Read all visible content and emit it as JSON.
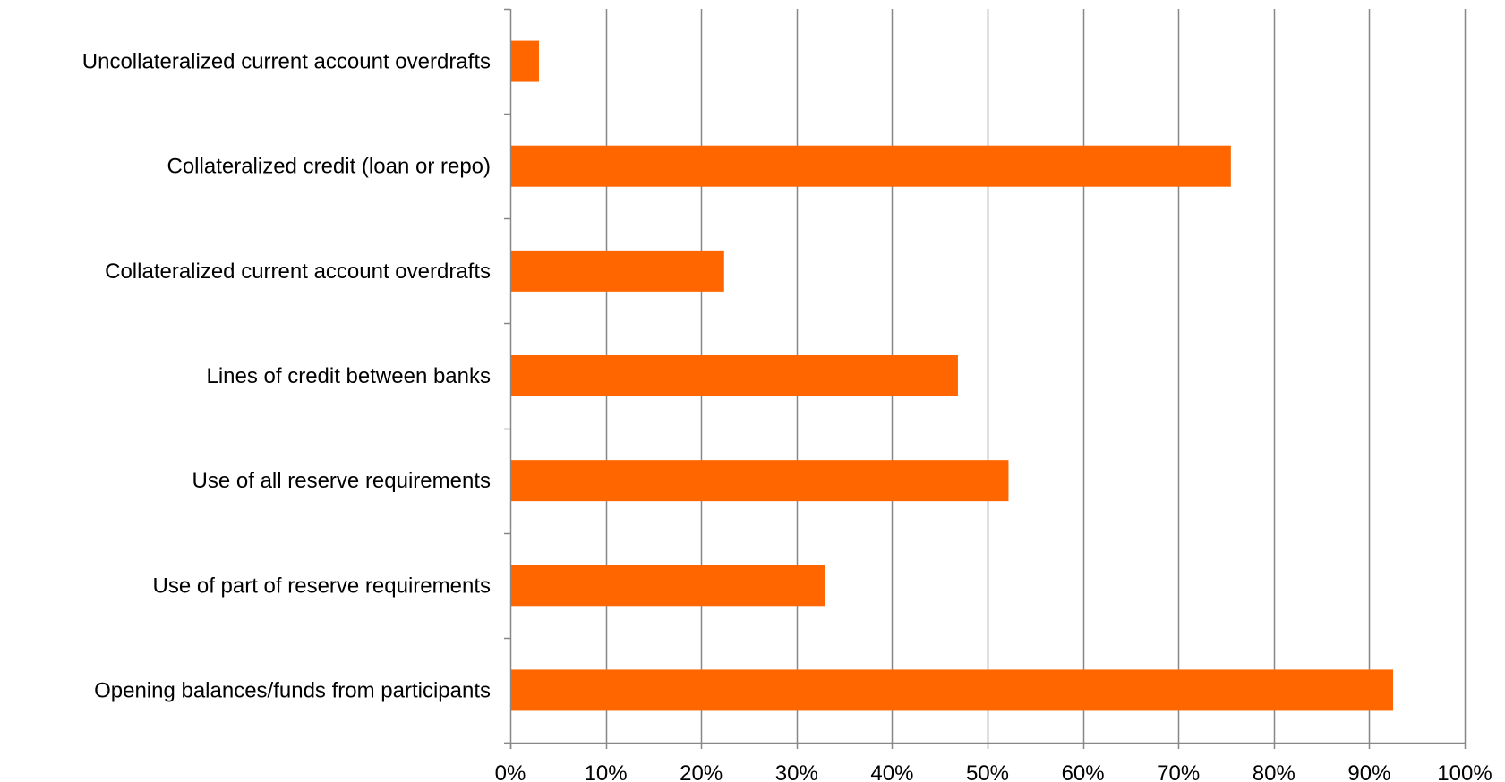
{
  "colors": {
    "bar": "#FF6600",
    "grid": "#878787",
    "axis": "#878787",
    "text": "#000000"
  },
  "chart_data": {
    "type": "bar",
    "orientation": "horizontal",
    "title": "",
    "xlabel": "",
    "ylabel": "",
    "xlim": [
      0,
      100
    ],
    "x_ticks": [
      0,
      10,
      20,
      30,
      40,
      50,
      60,
      70,
      80,
      90,
      100
    ],
    "x_tick_labels": [
      "0%",
      "10%",
      "20%",
      "30%",
      "40%",
      "50%",
      "60%",
      "70%",
      "80%",
      "90%",
      "100%"
    ],
    "grid": true,
    "legend": "none",
    "categories": [
      "Uncollateralized current account overdrafts",
      "Collateralized credit (loan or repo)",
      "Collateralized current account overdrafts",
      "Lines of credit between banks",
      "Use of all reserve requirements",
      "Use of part of reserve requirements",
      "Opening balances/funds from participants"
    ],
    "values": [
      3,
      75.5,
      22.4,
      46.9,
      52.2,
      33.0,
      92.5
    ]
  }
}
